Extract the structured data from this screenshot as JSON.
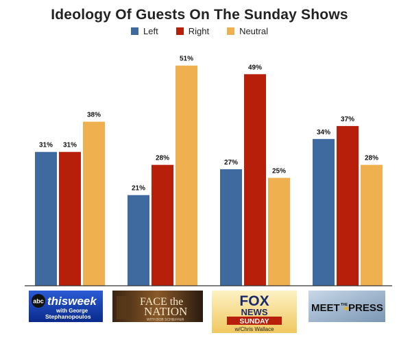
{
  "chart_data": {
    "type": "bar",
    "title": "Ideology Of Guests On The Sunday Shows",
    "xlabel": "",
    "ylabel": "",
    "ylim": [
      0,
      55
    ],
    "grid": false,
    "legend_position": "top-center",
    "categories": [
      "This Week with George Stephanopoulos",
      "Face the Nation with Bob Schieffer",
      "Fox News Sunday w/Chris Wallace",
      "Meet the Press"
    ],
    "series": [
      {
        "name": "Left",
        "color": "#3f6aa0",
        "values": [
          31,
          21,
          27,
          34
        ],
        "labels": [
          "31%",
          "21%",
          "27%",
          "34%"
        ]
      },
      {
        "name": "Right",
        "color": "#b81f0a",
        "values": [
          31,
          28,
          49,
          37
        ],
        "labels": [
          "31%",
          "28%",
          "49%",
          "37%"
        ]
      },
      {
        "name": "Neutral",
        "color": "#efb04f",
        "values": [
          38,
          51,
          25,
          28
        ],
        "labels": [
          "38%",
          "51%",
          "25%",
          "28%"
        ]
      }
    ]
  },
  "logos": [
    {
      "name": "this-week-logo",
      "line1": "abc",
      "line2": "thisweek",
      "line3": "with George",
      "line4": "Stephanopoulos"
    },
    {
      "name": "face-the-nation-logo",
      "line1": "FACE the",
      "line2": "NATION",
      "line3": "WITH BOB SCHIEFFER"
    },
    {
      "name": "fox-news-sunday-logo",
      "line1": "FOX",
      "line2": "NEWS",
      "line3": "SUNDAY",
      "line4": "w/Chris Wallace"
    },
    {
      "name": "meet-the-press-logo",
      "line1": "MEET",
      "line2": "THE",
      "line3": "PRESS"
    }
  ]
}
